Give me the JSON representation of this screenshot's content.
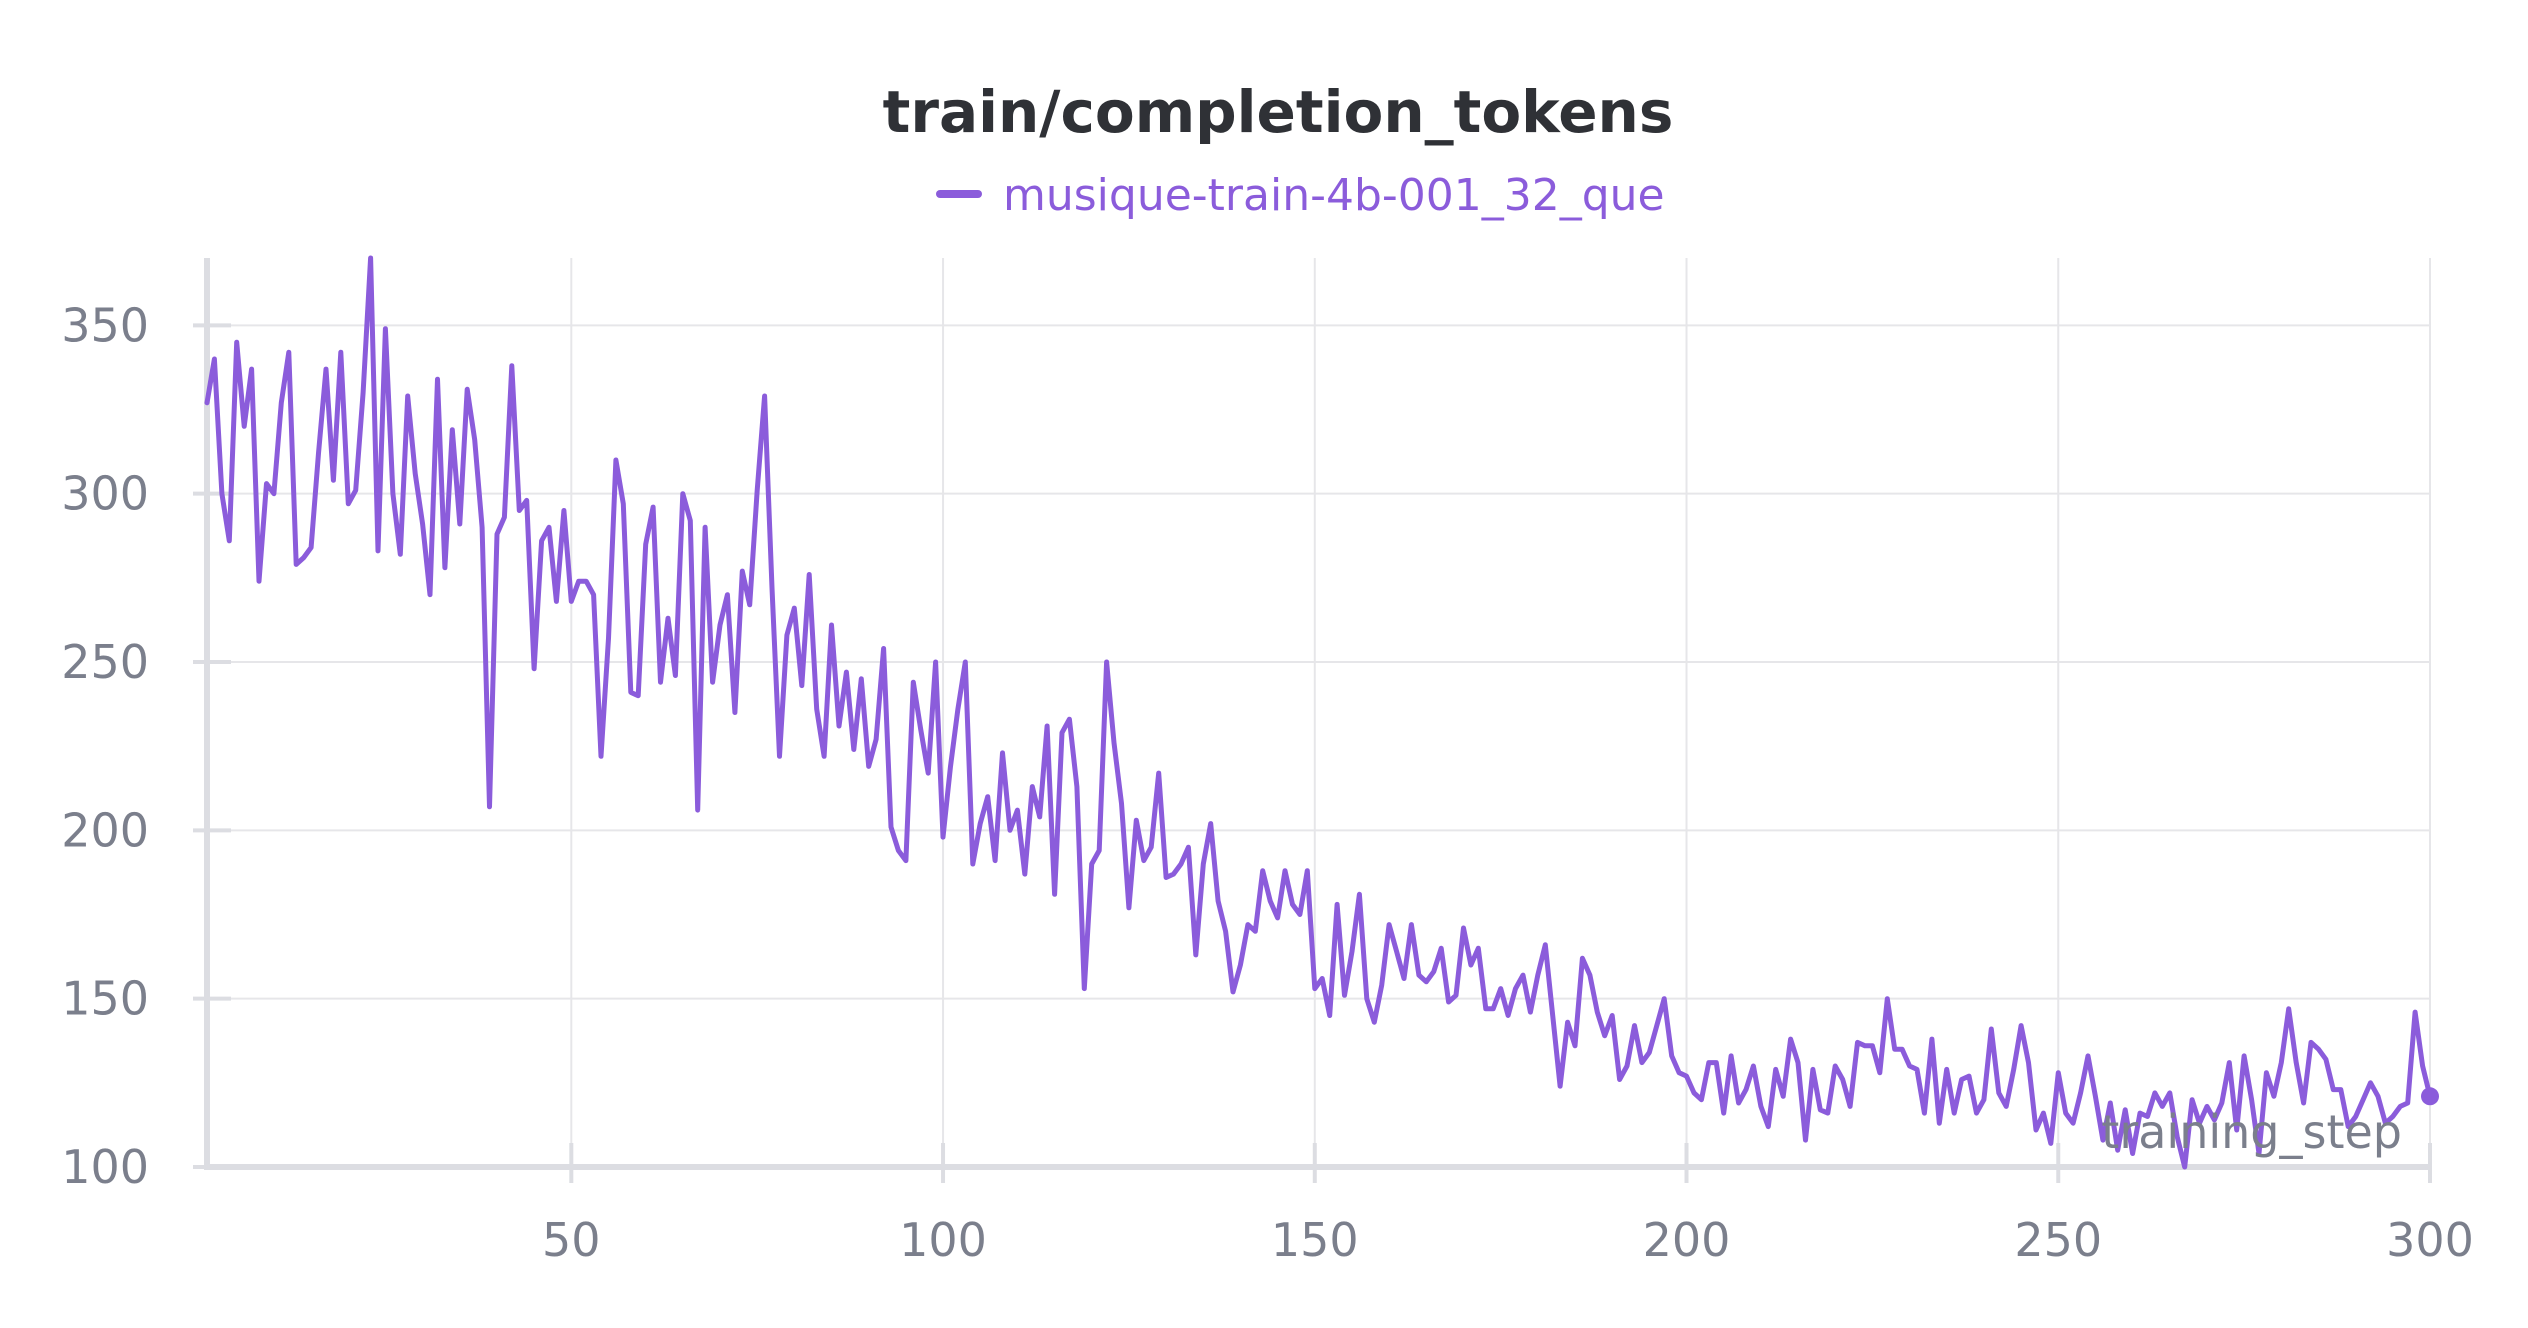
{
  "chart_data": {
    "type": "line",
    "title": "train/completion_tokens",
    "xlabel": "training_step",
    "ylabel": "",
    "xlim": [
      1,
      300
    ],
    "ylim": [
      100,
      370
    ],
    "x_ticks": [
      50,
      100,
      150,
      200,
      250,
      300
    ],
    "y_ticks": [
      100,
      150,
      200,
      250,
      300,
      350
    ],
    "grid": true,
    "legend_position": "top-center",
    "series": [
      {
        "name": "musique-train-4b-001_32_que",
        "color": "#8b5cdb",
        "x": [
          1,
          2,
          3,
          4,
          5,
          6,
          7,
          8,
          9,
          10,
          11,
          12,
          13,
          14,
          15,
          16,
          17,
          18,
          19,
          20,
          21,
          22,
          23,
          24,
          25,
          26,
          27,
          28,
          29,
          30,
          31,
          32,
          33,
          34,
          35,
          36,
          37,
          38,
          39,
          40,
          41,
          42,
          43,
          44,
          45,
          46,
          47,
          48,
          49,
          50,
          51,
          52,
          53,
          54,
          55,
          56,
          57,
          58,
          59,
          60,
          61,
          62,
          63,
          64,
          65,
          66,
          67,
          68,
          69,
          70,
          71,
          72,
          73,
          74,
          75,
          76,
          77,
          78,
          79,
          80,
          81,
          82,
          83,
          84,
          85,
          86,
          87,
          88,
          89,
          90,
          91,
          92,
          93,
          94,
          95,
          96,
          97,
          98,
          99,
          100,
          101,
          102,
          103,
          104,
          105,
          106,
          107,
          108,
          109,
          110,
          111,
          112,
          113,
          114,
          115,
          116,
          117,
          118,
          119,
          120,
          121,
          122,
          123,
          124,
          125,
          126,
          127,
          128,
          129,
          130,
          131,
          132,
          133,
          134,
          135,
          136,
          137,
          138,
          139,
          140,
          141,
          142,
          143,
          144,
          145,
          146,
          147,
          148,
          149,
          150,
          151,
          152,
          153,
          154,
          155,
          156,
          157,
          158,
          159,
          160,
          161,
          162,
          163,
          164,
          165,
          166,
          167,
          168,
          169,
          170,
          171,
          172,
          173,
          174,
          175,
          176,
          177,
          178,
          179,
          180,
          181,
          182,
          183,
          184,
          185,
          186,
          187,
          188,
          189,
          190,
          191,
          192,
          193,
          194,
          195,
          196,
          197,
          198,
          199,
          200,
          201,
          202,
          203,
          204,
          205,
          206,
          207,
          208,
          209,
          210,
          211,
          212,
          213,
          214,
          215,
          216,
          217,
          218,
          219,
          220,
          221,
          222,
          223,
          224,
          225,
          226,
          227,
          228,
          229,
          230,
          231,
          232,
          233,
          234,
          235,
          236,
          237,
          238,
          239,
          240,
          241,
          242,
          243,
          244,
          245,
          246,
          247,
          248,
          249,
          250,
          251,
          252,
          253,
          254,
          255,
          256,
          257,
          258,
          259,
          260,
          261,
          262,
          263,
          264,
          265,
          266,
          267,
          268,
          269,
          270,
          271,
          272,
          273,
          274,
          275,
          276,
          277,
          278,
          279,
          280,
          281,
          282,
          283,
          284,
          285,
          286,
          287,
          288,
          289,
          290,
          291,
          292,
          293,
          294,
          295,
          296,
          297,
          298,
          299,
          300
        ],
        "values": [
          327,
          340,
          300,
          286,
          345,
          320,
          337,
          274,
          303,
          300,
          327,
          342,
          279,
          281,
          284,
          312,
          337,
          304,
          342,
          297,
          301,
          330,
          370,
          283,
          349,
          300,
          282,
          329,
          306,
          291,
          270,
          334,
          278,
          319,
          291,
          331,
          316,
          290,
          207,
          288,
          293,
          338,
          295,
          298,
          248,
          286,
          290,
          268,
          295,
          268,
          274,
          274,
          270,
          222,
          257,
          310,
          297,
          241,
          240,
          285,
          296,
          244,
          263,
          246,
          300,
          292,
          206,
          290,
          244,
          261,
          270,
          235,
          277,
          267,
          301,
          329,
          272,
          222,
          258,
          266,
          243,
          276,
          236,
          222,
          261,
          231,
          247,
          224,
          245,
          219,
          227,
          254,
          201,
          194,
          191,
          244,
          230,
          217,
          250,
          198,
          219,
          236,
          250,
          190,
          202,
          210,
          191,
          223,
          200,
          206,
          187,
          213,
          204,
          231,
          181,
          229,
          233,
          213,
          153,
          190,
          194,
          250,
          226,
          208,
          177,
          203,
          191,
          195,
          217,
          186,
          187,
          190,
          195,
          163,
          190,
          202,
          179,
          170,
          152,
          160,
          172,
          170,
          188,
          179,
          174,
          188,
          178,
          175,
          188,
          153,
          156,
          145,
          178,
          151,
          164,
          181,
          150,
          143,
          154,
          172,
          164,
          156,
          172,
          157,
          155,
          158,
          165,
          149,
          151,
          171,
          160,
          165,
          147,
          147,
          153,
          145,
          153,
          157,
          146,
          157,
          166,
          145,
          124,
          143,
          136,
          162,
          157,
          146,
          139,
          145,
          126,
          130,
          142,
          131,
          134,
          142,
          150,
          133,
          128,
          127,
          122,
          120,
          131,
          131,
          116,
          133,
          119,
          123,
          130,
          118,
          112,
          129,
          121,
          138,
          131,
          108,
          129,
          117,
          116,
          130,
          126,
          118,
          137,
          136,
          136,
          128,
          150,
          135,
          135,
          130,
          129,
          116,
          138,
          113,
          129,
          116,
          126,
          127,
          116,
          120,
          141,
          122,
          118,
          129,
          142,
          131,
          111,
          116,
          107,
          128,
          116,
          113,
          122,
          133,
          121,
          108,
          119,
          105,
          117,
          104,
          116,
          115,
          122,
          118,
          122,
          109,
          100,
          120,
          113,
          118,
          114,
          119,
          131,
          111,
          133,
          120,
          104,
          128,
          121,
          131,
          147,
          131,
          119,
          137,
          135,
          132,
          123,
          123,
          112,
          115,
          120,
          125,
          121,
          113,
          115,
          118,
          119,
          146,
          130,
          121
        ]
      }
    ]
  }
}
